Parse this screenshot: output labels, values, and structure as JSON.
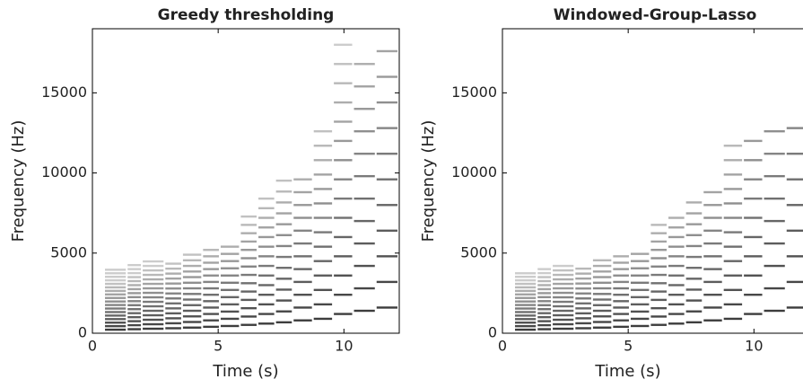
{
  "chart_data": [
    {
      "type": "spectrogram",
      "title": "Greedy thresholding",
      "xlabel": "Time (s)",
      "ylabel": "Frequency (Hz)",
      "xlim": [
        0,
        12.2
      ],
      "ylim": [
        0,
        19000
      ],
      "xticks": [
        0,
        5,
        10
      ],
      "yticks": [
        0,
        5000,
        10000,
        15000
      ],
      "color": "#333333",
      "notes": {
        "start": [
          0.5,
          1.4,
          2.0,
          2.9,
          3.6,
          4.4,
          5.1,
          5.9,
          6.6,
          7.3,
          8.0,
          8.8,
          9.6,
          10.4,
          11.3
        ],
        "end": [
          1.4,
          2.0,
          2.9,
          3.6,
          4.4,
          5.1,
          5.9,
          6.6,
          7.3,
          8.0,
          8.8,
          9.6,
          10.4,
          11.3,
          12.2
        ],
        "f0": [
          220,
          250,
          280,
          310,
          350,
          400,
          450,
          520,
          600,
          680,
          800,
          900,
          1200,
          1400,
          1600
        ],
        "partials": [
          18,
          17,
          16,
          14,
          14,
          13,
          12,
          14,
          14,
          14,
          12,
          14,
          15,
          12,
          11
        ]
      }
    },
    {
      "type": "spectrogram",
      "title": "Windowed-Group-Lasso",
      "xlabel": "Time (s)",
      "ylabel": "Frequency (Hz)",
      "xlim": [
        0,
        12.2
      ],
      "ylim": [
        0,
        19000
      ],
      "xticks": [
        0,
        5,
        10
      ],
      "yticks": [
        0,
        5000,
        10000,
        15000
      ],
      "color": "#333333",
      "notes": {
        "start": [
          0.5,
          1.4,
          2.0,
          2.9,
          3.6,
          4.4,
          5.1,
          5.9,
          6.6,
          7.3,
          8.0,
          8.8,
          9.6,
          10.4,
          11.3
        ],
        "end": [
          1.4,
          2.0,
          2.9,
          3.6,
          4.4,
          5.1,
          5.9,
          6.6,
          7.3,
          8.0,
          8.8,
          9.6,
          10.4,
          11.3,
          12.2
        ],
        "f0": [
          220,
          250,
          280,
          310,
          350,
          400,
          450,
          520,
          600,
          680,
          800,
          900,
          1200,
          1400,
          1600
        ],
        "partials": [
          17,
          16,
          15,
          13,
          13,
          12,
          11,
          13,
          12,
          12,
          11,
          13,
          10,
          9,
          8
        ]
      }
    }
  ]
}
